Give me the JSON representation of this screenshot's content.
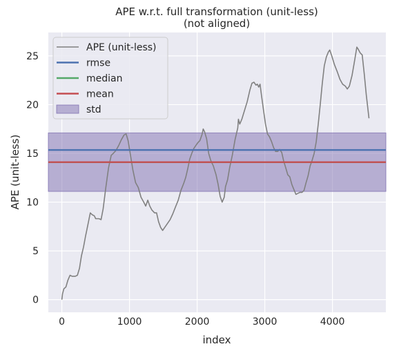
{
  "chart_data": {
    "type": "line",
    "title": "APE w.r.t. full transformation (unit-less)",
    "subtitle": "(not aligned)",
    "xlabel": "index",
    "ylabel": "APE (unit-less)",
    "xlim": [
      -200,
      4790
    ],
    "ylim": [
      -1.3,
      27.4
    ],
    "x_ticks": [
      0,
      1000,
      2000,
      3000,
      4000
    ],
    "y_ticks": [
      0,
      5,
      10,
      15,
      20,
      25
    ],
    "grid": true,
    "legend_position": "top-left",
    "background_color": "#eaeaf2",
    "grid_color": "#ffffff",
    "series": [
      {
        "name": "APE (unit-less)",
        "color": "#808080",
        "points": [
          [
            0,
            0
          ],
          [
            10,
            0.6
          ],
          [
            30,
            1.1
          ],
          [
            60,
            1.3
          ],
          [
            90,
            2.0
          ],
          [
            120,
            2.5
          ],
          [
            150,
            2.4
          ],
          [
            200,
            2.4
          ],
          [
            230,
            2.5
          ],
          [
            260,
            3.2
          ],
          [
            290,
            4.5
          ],
          [
            320,
            5.4
          ],
          [
            350,
            6.5
          ],
          [
            380,
            7.5
          ],
          [
            400,
            8.2
          ],
          [
            420,
            8.9
          ],
          [
            450,
            8.7
          ],
          [
            480,
            8.6
          ],
          [
            500,
            8.3
          ],
          [
            550,
            8.3
          ],
          [
            580,
            8.2
          ],
          [
            610,
            9.3
          ],
          [
            650,
            11.5
          ],
          [
            690,
            13.5
          ],
          [
            730,
            14.8
          ],
          [
            760,
            15.0
          ],
          [
            800,
            15.3
          ],
          [
            840,
            15.8
          ],
          [
            880,
            16.4
          ],
          [
            920,
            16.9
          ],
          [
            950,
            17.0
          ],
          [
            980,
            16.3
          ],
          [
            1010,
            15.0
          ],
          [
            1050,
            13.3
          ],
          [
            1090,
            12.0
          ],
          [
            1130,
            11.5
          ],
          [
            1170,
            10.5
          ],
          [
            1210,
            10.0
          ],
          [
            1240,
            9.6
          ],
          [
            1270,
            10.2
          ],
          [
            1300,
            9.6
          ],
          [
            1330,
            9.2
          ],
          [
            1370,
            8.9
          ],
          [
            1400,
            8.9
          ],
          [
            1430,
            8.0
          ],
          [
            1460,
            7.4
          ],
          [
            1490,
            7.1
          ],
          [
            1520,
            7.4
          ],
          [
            1560,
            7.8
          ],
          [
            1600,
            8.2
          ],
          [
            1640,
            8.8
          ],
          [
            1680,
            9.5
          ],
          [
            1720,
            10.2
          ],
          [
            1760,
            11.2
          ],
          [
            1800,
            11.9
          ],
          [
            1830,
            12.5
          ],
          [
            1860,
            13.4
          ],
          [
            1890,
            14.4
          ],
          [
            1920,
            15.0
          ],
          [
            1950,
            15.5
          ],
          [
            1980,
            15.8
          ],
          [
            2010,
            16.1
          ],
          [
            2040,
            16.3
          ],
          [
            2070,
            16.9
          ],
          [
            2090,
            17.5
          ],
          [
            2110,
            17.2
          ],
          [
            2140,
            16.5
          ],
          [
            2170,
            15.0
          ],
          [
            2200,
            14.3
          ],
          [
            2240,
            13.7
          ],
          [
            2280,
            12.8
          ],
          [
            2310,
            11.8
          ],
          [
            2340,
            10.6
          ],
          [
            2370,
            10.0
          ],
          [
            2400,
            10.5
          ],
          [
            2420,
            11.6
          ],
          [
            2450,
            12.3
          ],
          [
            2480,
            13.5
          ],
          [
            2520,
            14.8
          ],
          [
            2560,
            16.4
          ],
          [
            2600,
            17.6
          ],
          [
            2610,
            18.5
          ],
          [
            2630,
            18.0
          ],
          [
            2660,
            18.5
          ],
          [
            2700,
            19.4
          ],
          [
            2740,
            20.3
          ],
          [
            2780,
            21.5
          ],
          [
            2810,
            22.2
          ],
          [
            2840,
            22.3
          ],
          [
            2870,
            22.0
          ],
          [
            2890,
            22.1
          ],
          [
            2910,
            21.8
          ],
          [
            2930,
            22.1
          ],
          [
            2950,
            21.0
          ],
          [
            2980,
            19.5
          ],
          [
            3010,
            18.0
          ],
          [
            3040,
            17.0
          ],
          [
            3070,
            16.7
          ],
          [
            3100,
            16.2
          ],
          [
            3130,
            15.6
          ],
          [
            3160,
            15.2
          ],
          [
            3190,
            15.2
          ],
          [
            3220,
            15.4
          ],
          [
            3250,
            15.1
          ],
          [
            3280,
            14.2
          ],
          [
            3310,
            13.5
          ],
          [
            3340,
            12.8
          ],
          [
            3370,
            12.6
          ],
          [
            3400,
            11.8
          ],
          [
            3430,
            11.3
          ],
          [
            3460,
            10.8
          ],
          [
            3490,
            10.9
          ],
          [
            3520,
            11.0
          ],
          [
            3550,
            11.0
          ],
          [
            3580,
            11.2
          ],
          [
            3610,
            12.0
          ],
          [
            3640,
            12.7
          ],
          [
            3670,
            13.7
          ],
          [
            3700,
            14.3
          ],
          [
            3730,
            15.0
          ],
          [
            3760,
            16.2
          ],
          [
            3790,
            18.0
          ],
          [
            3820,
            20.0
          ],
          [
            3850,
            22.2
          ],
          [
            3880,
            24.0
          ],
          [
            3910,
            24.9
          ],
          [
            3940,
            25.4
          ],
          [
            3960,
            25.6
          ],
          [
            3990,
            25.0
          ],
          [
            4030,
            24.1
          ],
          [
            4070,
            23.4
          ],
          [
            4110,
            22.6
          ],
          [
            4150,
            22.1
          ],
          [
            4190,
            21.9
          ],
          [
            4220,
            21.6
          ],
          [
            4250,
            21.9
          ],
          [
            4290,
            23.0
          ],
          [
            4330,
            24.6
          ],
          [
            4360,
            25.9
          ],
          [
            4380,
            25.7
          ],
          [
            4410,
            25.3
          ],
          [
            4440,
            25.1
          ],
          [
            4470,
            23.2
          ],
          [
            4500,
            21.0
          ],
          [
            4540,
            18.6
          ]
        ]
      },
      {
        "name": "rmse",
        "color": "#4c72b0",
        "value": 15.35
      },
      {
        "name": "median",
        "color": "#55a868",
        "value": 14.1
      },
      {
        "name": "mean",
        "color": "#c44e52",
        "value": 14.1
      },
      {
        "name": "std",
        "color": "#8172b2",
        "value": [
          11.1,
          17.1
        ]
      }
    ]
  }
}
